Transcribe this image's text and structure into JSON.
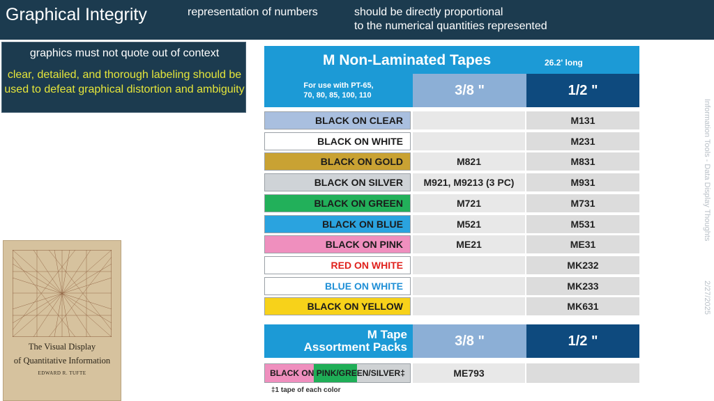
{
  "header": {
    "title": "Graphical Integrity",
    "mid_text": "representation of numbers",
    "right_line1": "should be directly proportional",
    "right_line2": "to the numerical quantities represented"
  },
  "callout": {
    "line1": "graphics must not quote out of context",
    "line2": "clear, detailed, and thorough labeling should be used to defeat graphical distortion and ambiguity"
  },
  "side": {
    "footer_text": "Information Tools - Data Display Thoughts",
    "date": "2/27/2025"
  },
  "book": {
    "title_line1": "The Visual Display",
    "title_line2": "of Quantitative Information",
    "author": "EDWARD R. TUFTE"
  },
  "tape_chart": {
    "title": "M Non-Laminated Tapes",
    "subtitle": "26.2' long",
    "use_line1": "For use with PT-65,",
    "use_line2": "70, 80, 85, 100, 110",
    "col1": "3/8 \"",
    "col2": "1/2 \"",
    "rows": [
      {
        "label": "BLACK ON CLEAR",
        "c1": "",
        "c2": "M131",
        "bg": "#a9bfdf",
        "fg": "#1b1b1b"
      },
      {
        "label": "BLACK ON WHITE",
        "c1": "",
        "c2": "M231",
        "bg": "#ffffff",
        "fg": "#1b1b1b"
      },
      {
        "label": "BLACK ON GOLD",
        "c1": "M821",
        "c2": "M831",
        "bg": "#c9a233",
        "fg": "#1b1b1b"
      },
      {
        "label": "BLACK ON SILVER",
        "c1": "M921, M9213  (3 PC)",
        "c2": "M931",
        "bg": "#cfd3d7",
        "fg": "#1b1b1b"
      },
      {
        "label": "BLACK ON GREEN",
        "c1": "M721",
        "c2": "M731",
        "bg": "#22b05a",
        "fg": "#1b1b1b"
      },
      {
        "label": "BLACK ON BLUE",
        "c1": "M521",
        "c2": "M531",
        "bg": "#2aa3df",
        "fg": "#1b1b1b"
      },
      {
        "label": "BLACK ON PINK",
        "c1": "ME21",
        "c2": "ME31",
        "bg": "#ef8fbe",
        "fg": "#1b1b1b"
      },
      {
        "label": "RED ON WHITE",
        "c1": "",
        "c2": "MK232",
        "bg": "#ffffff",
        "fg": "#e0211c"
      },
      {
        "label": "BLUE ON WHITE",
        "c1": "",
        "c2": "MK233",
        "bg": "#ffffff",
        "fg": "#1f8fd6"
      },
      {
        "label": "BLACK ON YELLOW",
        "c1": "",
        "c2": "MK631",
        "bg": "#f7d21a",
        "fg": "#1b1b1b"
      }
    ],
    "assortment_title_line1": "M Tape",
    "assortment_title_line2": "Assortment Packs",
    "assortment_col1": "3/8 \"",
    "assortment_col2": "1/2 \"",
    "assortment_label": "BLACK ON PINK/GREEN/SILVER‡",
    "assortment_c1": "ME793",
    "footnote": "‡1 tape of each color"
  },
  "colors": {
    "header_bg": "#1c3b4f",
    "callout_accent": "#e6e63a",
    "chart_blue": "#1c9ad6",
    "chart_navy": "#0e4a7e",
    "chart_light_blue": "#8cafd6"
  }
}
